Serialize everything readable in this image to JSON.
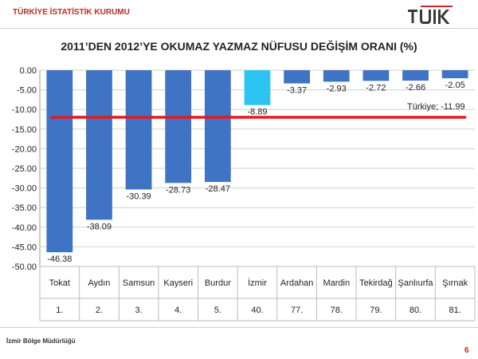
{
  "header": {
    "org": "TÜRKİYE İSTATİSTİK KURUMU",
    "logo_text": "TÜİK"
  },
  "footer": {
    "office": "İzmir Bölge Müdürlüğü",
    "page": "6"
  },
  "colors": {
    "bar": "#3f74c4",
    "bar_highlight": "#2ec4f2",
    "reference_line": "#e31a1c",
    "brand_red": "#c62828"
  },
  "chart_data": {
    "type": "bar",
    "title": "2011’DEN 2012’YE OKUMAZ YAZMAZ NÜFUSU DEĞİŞİM ORANI (%)",
    "categories": [
      "Tokat",
      "Aydın",
      "Samsun",
      "Kayseri",
      "Burdur",
      "İzmir",
      "Ardahan",
      "Mardin",
      "Tekirdağ",
      "Şanlıurfa",
      "Şırnak"
    ],
    "ranks": [
      "1.",
      "2.",
      "3.",
      "4.",
      "5.",
      "40.",
      "77.",
      "78.",
      "79.",
      "80.",
      "81."
    ],
    "values": [
      -46.38,
      -38.09,
      -30.39,
      -28.73,
      -28.47,
      -8.89,
      -3.37,
      -2.93,
      -2.72,
      -2.66,
      -2.05
    ],
    "value_labels": [
      "-46.38",
      "-38.09",
      "-30.39",
      "-28.73",
      "-28.47",
      "-8.89",
      "-3.37",
      "-2.93",
      "-2.72",
      "-2.66",
      "-2.05"
    ],
    "highlight_index": 5,
    "ylim": [
      -50,
      0
    ],
    "yticks": [
      0,
      -5,
      -10,
      -15,
      -20,
      -25,
      -30,
      -35,
      -40,
      -45,
      -50
    ],
    "ytick_labels": [
      "0.00",
      "-5.00",
      "-10.00",
      "-15.00",
      "-20.00",
      "-25.00",
      "-30.00",
      "-35.00",
      "-40.00",
      "-45.00",
      "-50.00"
    ],
    "reference": {
      "value": -11.99,
      "label": "Türkiye; -11.99"
    },
    "xlabel": "",
    "ylabel": "",
    "grid": true,
    "legend": "none"
  }
}
